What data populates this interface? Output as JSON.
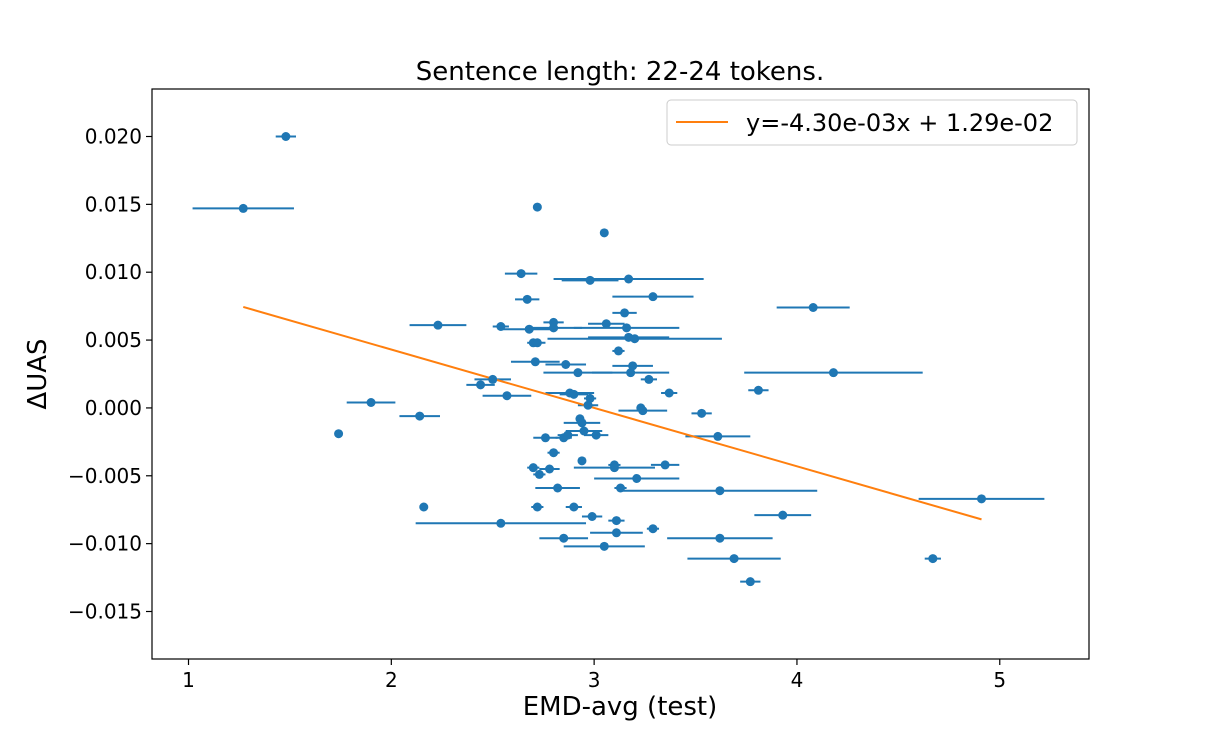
{
  "chart_data": {
    "type": "scatter",
    "title": "Sentence length: 22-24 tokens.",
    "xlabel": "EMD-avg (test)",
    "ylabel": "ΔUAS",
    "xlim": [
      0.82,
      5.44
    ],
    "ylim": [
      -0.0185,
      0.0235
    ],
    "xticks": [
      1,
      2,
      3,
      4,
      5
    ],
    "xtick_labels": [
      "1",
      "2",
      "3",
      "4",
      "5"
    ],
    "yticks": [
      -0.015,
      -0.01,
      -0.005,
      0.0,
      0.005,
      0.01,
      0.015,
      0.02
    ],
    "ytick_labels": [
      "−0.015",
      "−0.010",
      "−0.005",
      "0.000",
      "0.005",
      "0.010",
      "0.015",
      "0.020"
    ],
    "grid": false,
    "legend_position": "top-right",
    "colors": {
      "points": "#1f77b4",
      "fit": "#ff7f0e"
    },
    "fit": {
      "label": "y=-4.30e-03x + 1.29e-02",
      "slope": -0.0043,
      "intercept": 0.0129,
      "x_range": [
        1.27,
        4.91
      ]
    },
    "points": [
      {
        "x": 1.48,
        "y": 0.02,
        "xerr": 0.05
      },
      {
        "x": 1.27,
        "y": 0.0147,
        "xerr": 0.25
      },
      {
        "x": 1.9,
        "y": 0.0004,
        "xerr": 0.12
      },
      {
        "x": 1.74,
        "y": -0.0019,
        "xerr": 0.0
      },
      {
        "x": 2.14,
        "y": -0.0006,
        "xerr": 0.1
      },
      {
        "x": 2.16,
        "y": -0.0073,
        "xerr": 0.0
      },
      {
        "x": 2.23,
        "y": 0.0061,
        "xerr": 0.14
      },
      {
        "x": 2.44,
        "y": 0.0017,
        "xerr": 0.07
      },
      {
        "x": 2.5,
        "y": 0.0021,
        "xerr": 0.09
      },
      {
        "x": 2.54,
        "y": 0.006,
        "xerr": 0.04
      },
      {
        "x": 2.54,
        "y": -0.0085,
        "xerr": 0.42
      },
      {
        "x": 2.57,
        "y": 0.0009,
        "xerr": 0.12
      },
      {
        "x": 2.64,
        "y": 0.0099,
        "xerr": 0.08
      },
      {
        "x": 2.67,
        "y": 0.008,
        "xerr": 0.06
      },
      {
        "x": 2.68,
        "y": 0.0058,
        "xerr": 0.14
      },
      {
        "x": 2.7,
        "y": 0.0048,
        "xerr": 0.03
      },
      {
        "x": 2.71,
        "y": 0.0034,
        "xerr": 0.12
      },
      {
        "x": 2.7,
        "y": -0.0044,
        "xerr": 0.03
      },
      {
        "x": 2.72,
        "y": 0.0148,
        "xerr": 0.02
      },
      {
        "x": 2.72,
        "y": 0.0048,
        "xerr": 0.04
      },
      {
        "x": 2.73,
        "y": -0.0049,
        "xerr": 0.03
      },
      {
        "x": 2.72,
        "y": -0.0073,
        "xerr": 0.03
      },
      {
        "x": 2.76,
        "y": -0.0022,
        "xerr": 0.06
      },
      {
        "x": 2.78,
        "y": -0.0045,
        "xerr": 0.05
      },
      {
        "x": 2.8,
        "y": 0.0063,
        "xerr": 0.05
      },
      {
        "x": 2.8,
        "y": 0.0059,
        "xerr": 0.14
      },
      {
        "x": 2.8,
        "y": -0.0033,
        "xerr": 0.03
      },
      {
        "x": 2.82,
        "y": -0.0059,
        "xerr": 0.11
      },
      {
        "x": 2.85,
        "y": -0.0022,
        "xerr": 0.04
      },
      {
        "x": 2.85,
        "y": -0.0096,
        "xerr": 0.12
      },
      {
        "x": 2.86,
        "y": 0.0032,
        "xerr": 0.1
      },
      {
        "x": 2.87,
        "y": -0.002,
        "xerr": 0.05
      },
      {
        "x": 2.88,
        "y": 0.0011,
        "xerr": 0.12
      },
      {
        "x": 2.9,
        "y": 0.001,
        "xerr": 0.07
      },
      {
        "x": 2.9,
        "y": -0.0073,
        "xerr": 0.04
      },
      {
        "x": 2.92,
        "y": 0.0026,
        "xerr": 0.17
      },
      {
        "x": 2.93,
        "y": -0.0008,
        "xerr": 0.02
      },
      {
        "x": 2.94,
        "y": -0.0011,
        "xerr": 0.09
      },
      {
        "x": 2.94,
        "y": -0.0039,
        "xerr": 0.0
      },
      {
        "x": 2.95,
        "y": -0.0017,
        "xerr": 0.09
      },
      {
        "x": 2.97,
        "y": 0.0002,
        "xerr": 0.05
      },
      {
        "x": 2.98,
        "y": 0.0007,
        "xerr": 0.03
      },
      {
        "x": 2.98,
        "y": 0.0094,
        "xerr": 0.14
      },
      {
        "x": 2.99,
        "y": -0.008,
        "xerr": 0.05
      },
      {
        "x": 3.01,
        "y": -0.002,
        "xerr": 0.06
      },
      {
        "x": 3.05,
        "y": 0.0129,
        "xerr": 0.0
      },
      {
        "x": 3.06,
        "y": 0.0062,
        "xerr": 0.09
      },
      {
        "x": 3.05,
        "y": -0.0102,
        "xerr": 0.2
      },
      {
        "x": 3.1,
        "y": -0.0042,
        "xerr": 0.03
      },
      {
        "x": 3.1,
        "y": -0.0044,
        "xerr": 0.2
      },
      {
        "x": 3.11,
        "y": -0.0083,
        "xerr": 0.04
      },
      {
        "x": 3.11,
        "y": -0.0092,
        "xerr": 0.13
      },
      {
        "x": 3.12,
        "y": 0.0042,
        "xerr": 0.03
      },
      {
        "x": 3.13,
        "y": -0.0059,
        "xerr": 0.03
      },
      {
        "x": 3.15,
        "y": 0.007,
        "xerr": 0.06
      },
      {
        "x": 3.16,
        "y": 0.0059,
        "xerr": 0.26
      },
      {
        "x": 3.17,
        "y": 0.0095,
        "xerr": 0.37
      },
      {
        "x": 3.17,
        "y": 0.0052,
        "xerr": 0.2
      },
      {
        "x": 3.18,
        "y": 0.0026,
        "xerr": 0.19
      },
      {
        "x": 3.19,
        "y": 0.0031,
        "xerr": 0.1
      },
      {
        "x": 3.2,
        "y": 0.0051,
        "xerr": 0.43
      },
      {
        "x": 3.21,
        "y": -0.0052,
        "xerr": 0.21
      },
      {
        "x": 3.23,
        "y": 0.0,
        "xerr": 0.02
      },
      {
        "x": 3.24,
        "y": -0.0002,
        "xerr": 0.12
      },
      {
        "x": 3.27,
        "y": 0.0021,
        "xerr": 0.04
      },
      {
        "x": 3.29,
        "y": 0.0082,
        "xerr": 0.2
      },
      {
        "x": 3.29,
        "y": -0.0089,
        "xerr": 0.03
      },
      {
        "x": 3.35,
        "y": -0.0042,
        "xerr": 0.07
      },
      {
        "x": 3.37,
        "y": 0.0011,
        "xerr": 0.04
      },
      {
        "x": 3.53,
        "y": -0.0004,
        "xerr": 0.05
      },
      {
        "x": 3.61,
        "y": -0.0021,
        "xerr": 0.16
      },
      {
        "x": 3.62,
        "y": -0.0061,
        "xerr": 0.48
      },
      {
        "x": 3.62,
        "y": -0.0096,
        "xerr": 0.26
      },
      {
        "x": 3.69,
        "y": -0.0111,
        "xerr": 0.23
      },
      {
        "x": 3.77,
        "y": -0.0128,
        "xerr": 0.05
      },
      {
        "x": 3.81,
        "y": 0.0013,
        "xerr": 0.05
      },
      {
        "x": 3.93,
        "y": -0.0079,
        "xerr": 0.14
      },
      {
        "x": 4.08,
        "y": 0.0074,
        "xerr": 0.18
      },
      {
        "x": 4.18,
        "y": 0.0026,
        "xerr": 0.44
      },
      {
        "x": 4.67,
        "y": -0.0111,
        "xerr": 0.04
      },
      {
        "x": 4.91,
        "y": -0.0067,
        "xerr": 0.31
      }
    ]
  }
}
